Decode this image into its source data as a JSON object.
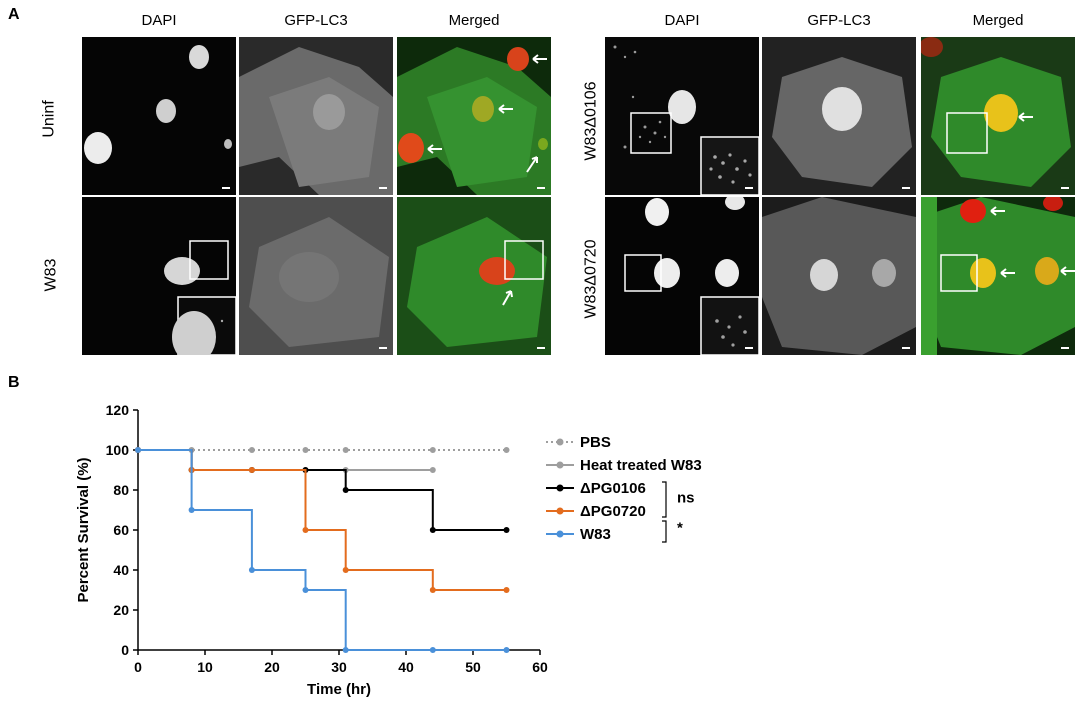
{
  "panel_a": {
    "letter": "A",
    "left_block": {
      "columns": [
        "DAPI",
        "GFP-LC3",
        "Merged"
      ],
      "rows": [
        "Uninf",
        "W83"
      ]
    },
    "right_block": {
      "columns": [
        "DAPI",
        "GFP-LC3",
        "Merged"
      ],
      "rows": [
        "W83Δ0106",
        "W83Δ0720"
      ]
    },
    "colors": {
      "gfp_green": "#2f8a2a",
      "nucleus_red": "#d8431b",
      "merge_yellow": "#e8c21a"
    }
  },
  "panel_b": {
    "letter": "B",
    "significance": {
      "upper": "ns",
      "lower": "*"
    }
  },
  "chart_data": {
    "type": "line",
    "step": true,
    "xlabel": "Time (hr)",
    "ylabel": "Percent Survival (%)",
    "xlim": [
      0,
      60
    ],
    "ylim": [
      0,
      120
    ],
    "xticks": [
      0,
      10,
      20,
      30,
      40,
      50,
      60
    ],
    "yticks": [
      0,
      20,
      40,
      60,
      80,
      100,
      120
    ],
    "legend_position": "right",
    "series": [
      {
        "name": "PBS",
        "color": "#9e9e9e",
        "dashed": true,
        "points": [
          [
            0,
            100
          ],
          [
            8,
            100
          ],
          [
            17,
            100
          ],
          [
            25,
            100
          ],
          [
            31,
            100
          ],
          [
            44,
            100
          ],
          [
            55,
            100
          ]
        ]
      },
      {
        "name": "Heat treated W83",
        "color": "#9e9e9e",
        "dashed": false,
        "points": [
          [
            0,
            100
          ],
          [
            8,
            90
          ],
          [
            17,
            90
          ],
          [
            25,
            90
          ],
          [
            31,
            90
          ],
          [
            44,
            90
          ]
        ]
      },
      {
        "name": "ΔPG0106",
        "color": "#000000",
        "dashed": false,
        "points": [
          [
            0,
            100
          ],
          [
            8,
            90
          ],
          [
            17,
            90
          ],
          [
            25,
            90
          ],
          [
            31,
            80
          ],
          [
            44,
            60
          ],
          [
            55,
            60
          ]
        ]
      },
      {
        "name": "ΔPG0720",
        "color": "#e36c1e",
        "dashed": false,
        "points": [
          [
            0,
            100
          ],
          [
            8,
            90
          ],
          [
            17,
            90
          ],
          [
            25,
            60
          ],
          [
            31,
            40
          ],
          [
            44,
            30
          ],
          [
            55,
            30
          ]
        ]
      },
      {
        "name": "W83",
        "color": "#4a90d9",
        "dashed": false,
        "points": [
          [
            0,
            100
          ],
          [
            8,
            70
          ],
          [
            17,
            40
          ],
          [
            25,
            30
          ],
          [
            31,
            0
          ],
          [
            44,
            0
          ],
          [
            55,
            0
          ]
        ]
      }
    ]
  }
}
